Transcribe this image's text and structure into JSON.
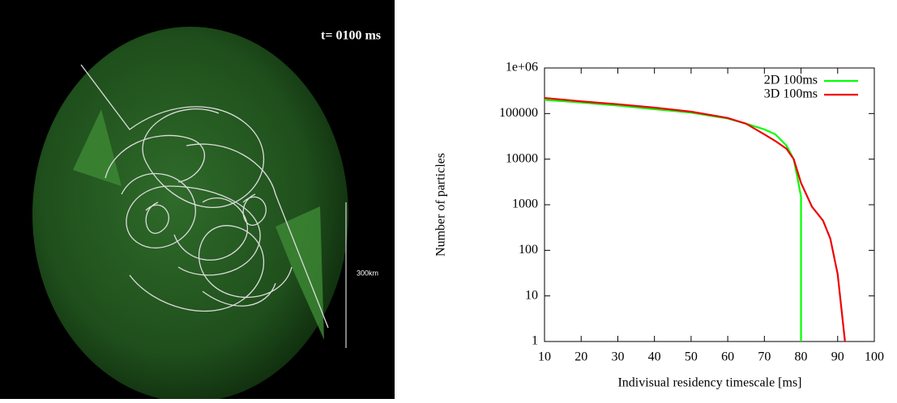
{
  "panel": {
    "time_label": "t= 0100 ms",
    "scale_label": "300km"
  },
  "chart_data": {
    "type": "line",
    "xlabel": "Indivisual residency timescale [ms]",
    "ylabel": "Number of particles",
    "xlim": [
      10,
      100
    ],
    "xticks": [
      10,
      20,
      30,
      40,
      50,
      60,
      70,
      80,
      90,
      100
    ],
    "ylim": [
      1,
      1000000
    ],
    "yticks": [
      1,
      10,
      100,
      1000,
      10000,
      100000,
      {
        "value": 1000000,
        "label": "1e+06"
      }
    ],
    "log_y": true,
    "legend": "upper right",
    "series": [
      {
        "name": "2D 100ms",
        "color": "#00ff00",
        "x": [
          10,
          20,
          30,
          40,
          50,
          60,
          65,
          70,
          73,
          76,
          78,
          79,
          80,
          80
        ],
        "values": [
          200000,
          175000,
          150000,
          125000,
          105000,
          78000,
          60000,
          45000,
          35000,
          20000,
          10000,
          4000,
          1500,
          1
        ]
      },
      {
        "name": "3D 100ms",
        "color": "#ee0000",
        "x": [
          10,
          20,
          30,
          40,
          50,
          60,
          65,
          70,
          73,
          76,
          78,
          80,
          83,
          86,
          88,
          90,
          92
        ],
        "values": [
          220000,
          185000,
          160000,
          135000,
          110000,
          80000,
          60000,
          35000,
          25000,
          17000,
          10000,
          3000,
          900,
          450,
          180,
          30,
          1
        ]
      }
    ]
  }
}
